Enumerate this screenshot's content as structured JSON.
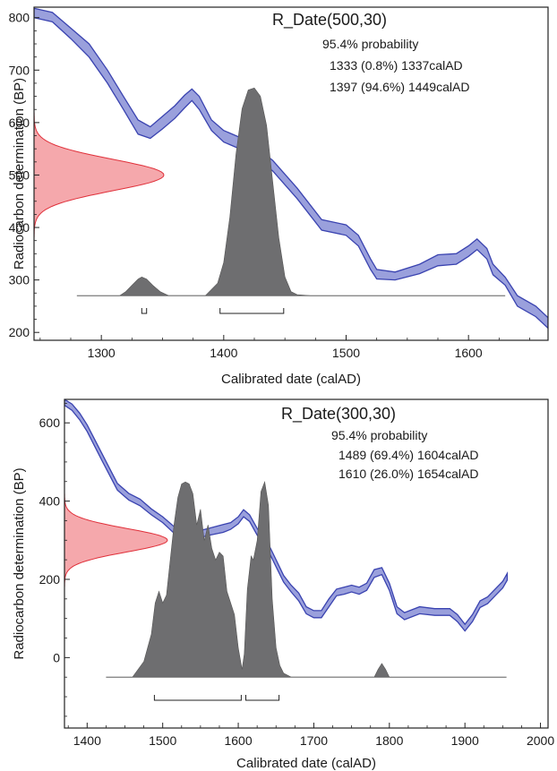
{
  "colors": {
    "curve_fill": "#9aa0dc",
    "curve_line": "#3a43b0",
    "prior_fill": "#f4a3a8",
    "prior_line": "#e0303a",
    "posterior_fill": "#6e6e70",
    "axis": "#222222"
  },
  "chart_data": [
    {
      "type": "area",
      "title": "R_Date(500,30)",
      "xlabel": "Calibrated date (calAD)",
      "ylabel": "Radiocarbon determination (BP)",
      "xlim": [
        1245,
        1665
      ],
      "ylim": [
        185,
        820
      ],
      "xticks": [
        1300,
        1400,
        1500,
        1600
      ],
      "yticks": [
        200,
        300,
        400,
        500,
        600,
        700,
        800
      ],
      "annotations": {
        "probability_label": "95.4% probability",
        "ranges": [
          "1333 (0.8%) 1337calAD",
          "1397 (94.6%) 1449calAD"
        ]
      },
      "measurement": {
        "bp": 500,
        "sigma": 30
      },
      "calibration_curve": {
        "x": [
          1245,
          1260,
          1275,
          1290,
          1305,
          1318,
          1330,
          1340,
          1350,
          1360,
          1368,
          1374,
          1380,
          1390,
          1400,
          1420,
          1440,
          1460,
          1480,
          1500,
          1510,
          1520,
          1525,
          1540,
          1560,
          1575,
          1590,
          1600,
          1607,
          1615,
          1620,
          1630,
          1640,
          1655,
          1665
        ],
        "upper": [
          818,
          810,
          780,
          750,
          700,
          650,
          605,
          592,
          612,
          632,
          652,
          664,
          650,
          605,
          585,
          565,
          528,
          475,
          415,
          405,
          385,
          340,
          320,
          315,
          330,
          348,
          350,
          365,
          378,
          360,
          330,
          305,
          270,
          250,
          228
        ],
        "lower": [
          800,
          792,
          760,
          725,
          675,
          625,
          578,
          570,
          588,
          608,
          628,
          642,
          625,
          585,
          563,
          543,
          508,
          455,
          395,
          385,
          365,
          320,
          302,
          300,
          312,
          327,
          330,
          345,
          358,
          340,
          310,
          290,
          250,
          230,
          208
        ]
      },
      "posterior": {
        "baseline": 270,
        "xlim": [
          1280,
          1630
        ],
        "x": [
          1315,
          1320,
          1325,
          1330,
          1333,
          1337,
          1342,
          1348,
          1355,
          1385,
          1395,
          1400,
          1405,
          1410,
          1415,
          1420,
          1425,
          1430,
          1435,
          1440,
          1445,
          1450,
          1455,
          1460,
          1470
        ],
        "y": [
          0,
          0.02,
          0.05,
          0.08,
          0.09,
          0.08,
          0.05,
          0.02,
          0,
          0,
          0.06,
          0.16,
          0.38,
          0.68,
          0.9,
          0.99,
          1.0,
          0.96,
          0.82,
          0.55,
          0.28,
          0.09,
          0.02,
          0.005,
          0
        ]
      },
      "ranges_95": [
        [
          1333,
          1337
        ],
        [
          1397,
          1449
        ]
      ]
    },
    {
      "type": "area",
      "title": "R_Date(300,30)",
      "xlabel": "Calibrated date (calAD)",
      "ylabel": "Radiocarbon determination (BP)",
      "xlim": [
        1370,
        2010
      ],
      "ylim": [
        -180,
        660
      ],
      "xticks": [
        1400,
        1500,
        1600,
        1700,
        1800,
        1900,
        2000
      ],
      "yticks": [
        0,
        200,
        400,
        600
      ],
      "annotations": {
        "probability_label": "95.4% probability",
        "ranges": [
          "1489 (69.4%) 1604calAD",
          "1610 (26.0%) 1654calAD"
        ]
      },
      "measurement": {
        "bp": 300,
        "sigma": 30
      },
      "calibration_curve": {
        "x": [
          1370,
          1380,
          1390,
          1400,
          1420,
          1440,
          1455,
          1470,
          1485,
          1500,
          1515,
          1530,
          1540,
          1560,
          1580,
          1590,
          1600,
          1607,
          1615,
          1625,
          1640,
          1650,
          1660,
          1670,
          1680,
          1690,
          1700,
          1710,
          1720,
          1730,
          1740,
          1750,
          1760,
          1770,
          1780,
          1790,
          1800,
          1810,
          1820,
          1840,
          1860,
          1880,
          1890,
          1900,
          1910,
          1920,
          1930,
          1940,
          1950,
          1956
        ],
        "upper": [
          660,
          648,
          625,
          595,
          520,
          445,
          420,
          405,
          380,
          360,
          335,
          320,
          320,
          330,
          340,
          345,
          360,
          378,
          365,
          330,
          290,
          250,
          210,
          185,
          165,
          130,
          120,
          120,
          150,
          175,
          180,
          185,
          180,
          190,
          225,
          230,
          190,
          130,
          115,
          130,
          125,
          125,
          110,
          85,
          110,
          145,
          155,
          175,
          195,
          215
        ],
        "lower": [
          645,
          632,
          608,
          578,
          502,
          428,
          403,
          388,
          365,
          345,
          318,
          302,
          302,
          312,
          320,
          328,
          342,
          360,
          348,
          313,
          272,
          232,
          193,
          168,
          145,
          112,
          102,
          102,
          130,
          158,
          162,
          168,
          162,
          172,
          205,
          212,
          172,
          112,
          97,
          112,
          108,
          108,
          92,
          68,
          92,
          128,
          138,
          158,
          178,
          198
        ]
      },
      "posterior": {
        "baseline": -50,
        "xlim": [
          1425,
          1955
        ],
        "x": [
          1460,
          1475,
          1485,
          1490,
          1495,
          1500,
          1505,
          1510,
          1515,
          1520,
          1525,
          1530,
          1535,
          1540,
          1545,
          1550,
          1555,
          1560,
          1565,
          1570,
          1575,
          1580,
          1585,
          1590,
          1595,
          1600,
          1605,
          1608,
          1612,
          1617,
          1620,
          1625,
          1630,
          1635,
          1640,
          1645,
          1650,
          1655,
          1660,
          1670,
          1780,
          1785,
          1790,
          1795,
          1800
        ],
        "y": [
          0,
          0.08,
          0.22,
          0.38,
          0.44,
          0.38,
          0.42,
          0.6,
          0.78,
          0.92,
          0.99,
          1.0,
          0.99,
          0.94,
          0.78,
          0.86,
          0.7,
          0.78,
          0.66,
          0.6,
          0.64,
          0.62,
          0.44,
          0.38,
          0.32,
          0.15,
          0.04,
          0.12,
          0.45,
          0.62,
          0.6,
          0.7,
          0.95,
          1.0,
          0.88,
          0.4,
          0.15,
          0.06,
          0.02,
          0,
          0,
          0.04,
          0.07,
          0.04,
          0
        ]
      },
      "ranges_95": [
        [
          1489,
          1604
        ],
        [
          1610,
          1654
        ]
      ]
    }
  ]
}
